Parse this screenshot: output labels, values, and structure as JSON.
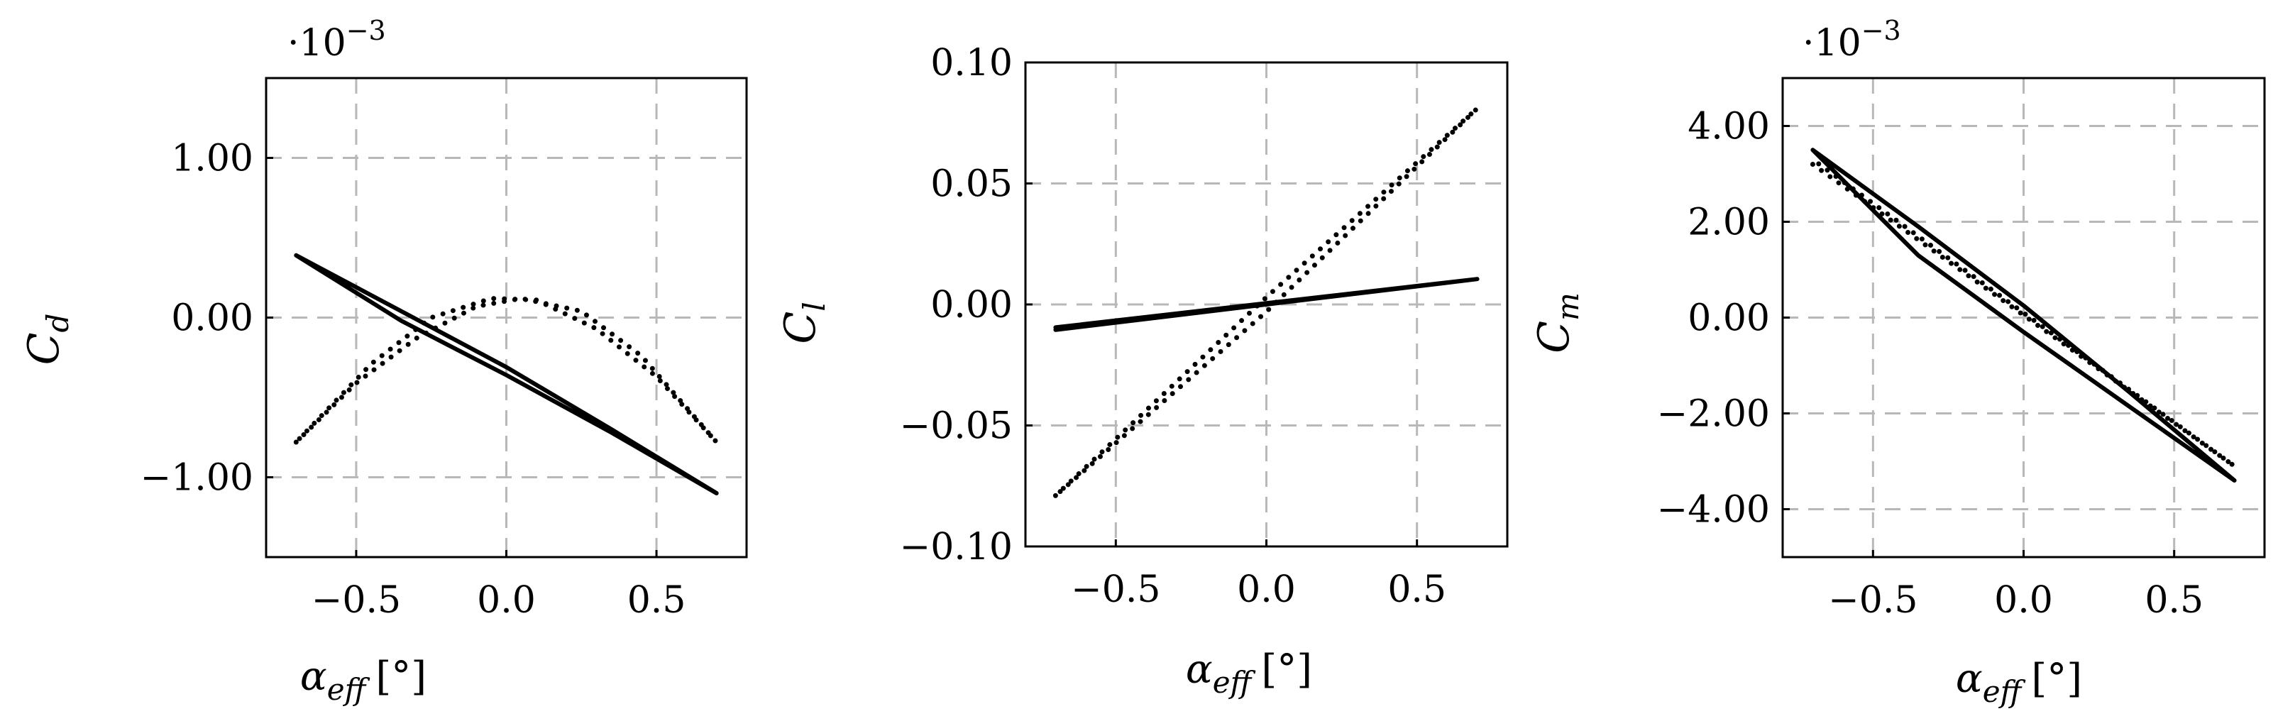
{
  "chart_data": [
    {
      "type": "line",
      "ylabel": "C",
      "ylabel_sub": "d",
      "xlabel": "α",
      "xlabel_sub": "eff",
      "xlabel_unit": "[°]",
      "multiplier": "·10",
      "multiplier_exp": "−3",
      "xlim": [
        -0.8,
        0.8
      ],
      "ylim": [
        -1.5,
        1.5
      ],
      "xticks": [
        -0.5,
        0.0,
        0.5
      ],
      "xtick_labels": [
        "−0.5",
        "0.0",
        "0.5"
      ],
      "yticks": [
        -1.0,
        0.0,
        1.0
      ],
      "ytick_labels": [
        "−1.00",
        "0.00",
        "1.00"
      ],
      "grid": true,
      "series": [
        {
          "style": "solid",
          "x": [
            -0.7,
            -0.35,
            0.0,
            0.35,
            0.7,
            0.35,
            0.0,
            -0.35,
            -0.7
          ],
          "y": [
            0.39,
            -0.02,
            -0.36,
            -0.72,
            -1.1,
            -0.7,
            -0.31,
            0.04,
            0.39
          ]
        },
        {
          "style": "dotted",
          "x": [
            -0.7,
            -0.5,
            -0.3,
            -0.1,
            0.05,
            0.25,
            0.45,
            0.7,
            0.5,
            0.3,
            0.1,
            -0.05,
            -0.25,
            -0.45,
            -0.7
          ],
          "y": [
            -0.78,
            -0.41,
            -0.13,
            0.07,
            0.12,
            0.04,
            -0.24,
            -0.78,
            -0.37,
            -0.07,
            0.11,
            0.12,
            0.0,
            -0.29,
            -0.78
          ]
        }
      ]
    },
    {
      "type": "line",
      "ylabel": "C",
      "ylabel_sub": "l",
      "xlabel": "α",
      "xlabel_sub": "eff",
      "xlabel_unit": "[°]",
      "xlim": [
        -0.8,
        0.8
      ],
      "ylim": [
        -0.1,
        0.1
      ],
      "xticks": [
        -0.5,
        0.0,
        0.5
      ],
      "xtick_labels": [
        "−0.5",
        "0.0",
        "0.5"
      ],
      "yticks": [
        -0.1,
        -0.05,
        0.0,
        0.05,
        0.1
      ],
      "ytick_labels": [
        "−0.10",
        "−0.05",
        "0.00",
        "0.05",
        "0.10"
      ],
      "grid": true,
      "series": [
        {
          "style": "solid",
          "x": [
            -0.7,
            0.7,
            -0.7
          ],
          "y": [
            -0.0105,
            0.0105,
            -0.0095
          ]
        },
        {
          "style": "dotted",
          "x": [
            -0.7,
            0.0,
            0.7,
            0.0,
            -0.7
          ],
          "y": [
            -0.079,
            0.003,
            0.081,
            -0.003,
            -0.079
          ]
        }
      ]
    },
    {
      "type": "line",
      "ylabel": "C",
      "ylabel_sub": "m",
      "xlabel": "α",
      "xlabel_sub": "eff",
      "xlabel_unit": "[°]",
      "multiplier": "·10",
      "multiplier_exp": "−3",
      "xlim": [
        -0.8,
        0.8
      ],
      "ylim": [
        -5.0,
        5.0
      ],
      "xticks": [
        -0.5,
        0.0,
        0.5
      ],
      "xtick_labels": [
        "−0.5",
        "0.0",
        "0.5"
      ],
      "yticks": [
        -4.0,
        -2.0,
        0.0,
        2.0,
        4.0
      ],
      "ytick_labels": [
        "−4.00",
        "−2.00",
        "0.00",
        "2.00",
        "4.00"
      ],
      "grid": true,
      "series": [
        {
          "style": "solid",
          "x": [
            -0.7,
            -0.35,
            0.0,
            0.35,
            0.7,
            0.35,
            0.0,
            -0.35,
            -0.7
          ],
          "y": [
            3.5,
            1.9,
            0.25,
            -1.55,
            -3.4,
            -1.85,
            -0.3,
            1.3,
            3.5
          ]
        },
        {
          "style": "dotted",
          "x": [
            -0.7,
            0.7,
            -0.7
          ],
          "y": [
            3.2,
            -3.1,
            3.3
          ]
        }
      ]
    }
  ]
}
